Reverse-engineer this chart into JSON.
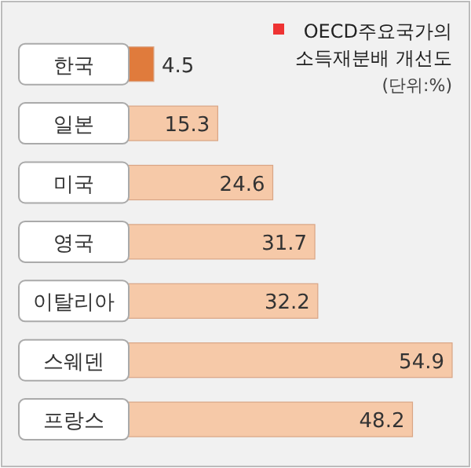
{
  "chart_data": {
    "type": "bar",
    "orientation": "horizontal",
    "title": "OECD주요국가의 소득재분배 개선도",
    "subtitle": "(단위:%)",
    "categories": [
      "한국",
      "일본",
      "미국",
      "영국",
      "이탈리아",
      "스웨덴",
      "프랑스"
    ],
    "values": [
      4.5,
      15.3,
      24.6,
      31.7,
      32.2,
      54.9,
      48.2
    ],
    "colors": [
      "#e07b3c",
      "#f6c9a8",
      "#f6c9a8",
      "#f6c9a8",
      "#f6c9a8",
      "#f6c9a8",
      "#f6c9a8"
    ],
    "data_labels": true
  }
}
